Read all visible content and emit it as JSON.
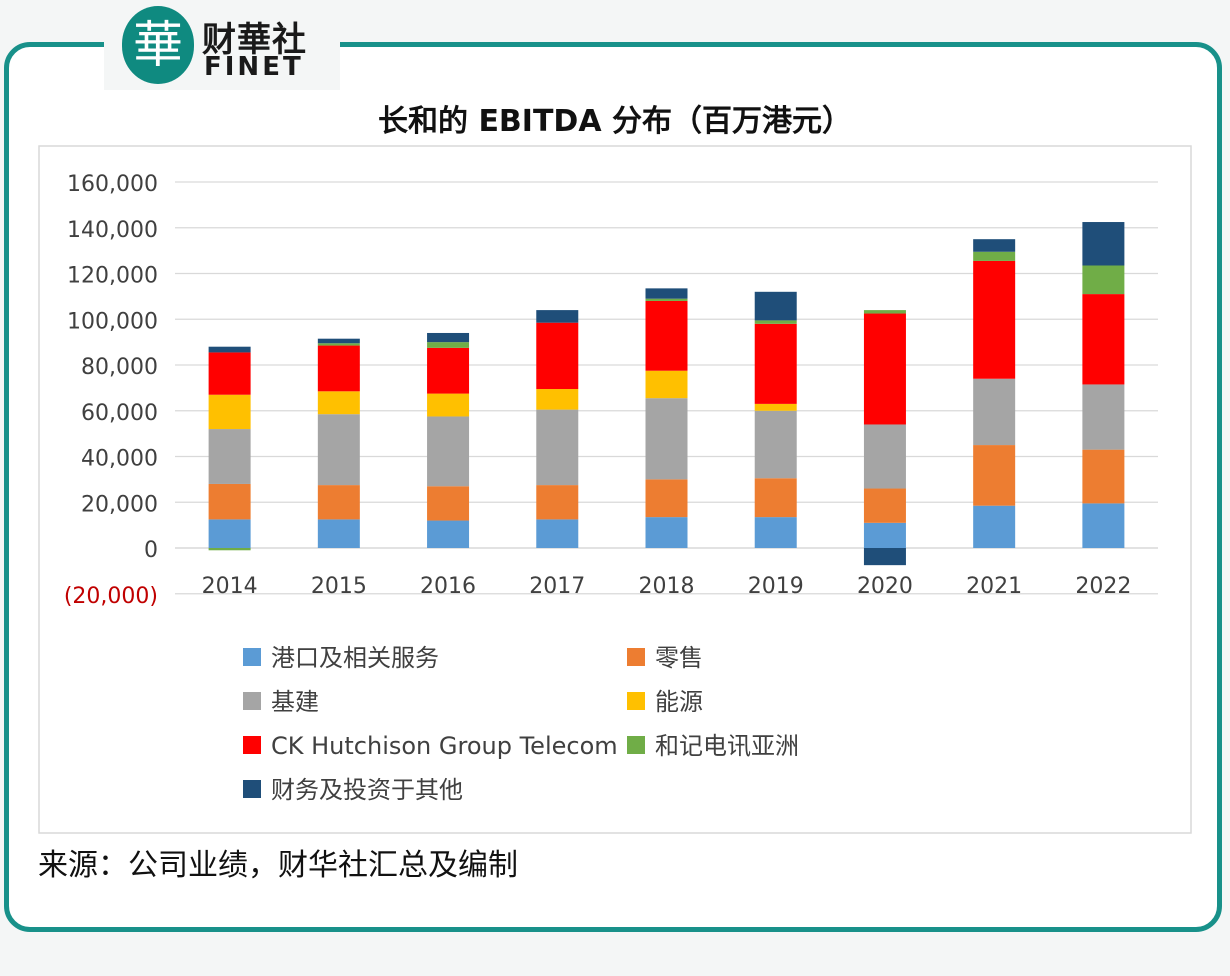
{
  "brand": {
    "logo_char": "華",
    "name_cn": "财華社",
    "name_en": "FINET"
  },
  "source_note": "来源：公司业绩，财华社汇总及编制",
  "colors": {
    "frame": "#18918a",
    "negative_label": "#c00000"
  },
  "chart_data": {
    "type": "bar",
    "stacked": true,
    "title": "长和的 EBITDA 分布（百万港元）",
    "xlabel": "",
    "ylabel": "",
    "ylim": [
      -20000,
      160000
    ],
    "yticks": [
      -20000,
      0,
      20000,
      40000,
      60000,
      80000,
      100000,
      120000,
      140000,
      160000
    ],
    "ytick_labels": [
      "(20,000)",
      "0",
      "20,000",
      "40,000",
      "60,000",
      "80,000",
      "100,000",
      "120,000",
      "140,000",
      "160,000"
    ],
    "grid": true,
    "legend_position": "bottom",
    "categories": [
      "2014",
      "2015",
      "2016",
      "2017",
      "2018",
      "2019",
      "2020",
      "2021",
      "2022"
    ],
    "series": [
      {
        "name": "港口及相关服务",
        "color": "#5b9bd5",
        "values": [
          12500,
          12500,
          12000,
          12500,
          13500,
          13500,
          11000,
          18500,
          19500
        ]
      },
      {
        "name": "零售",
        "color": "#ed7d31",
        "values": [
          15500,
          15000,
          15000,
          15000,
          16500,
          17000,
          15000,
          26500,
          23500
        ]
      },
      {
        "name": "基建",
        "color": "#a5a5a5",
        "values": [
          24000,
          31000,
          30500,
          33000,
          35500,
          29500,
          28000,
          29000,
          28500
        ]
      },
      {
        "name": "能源",
        "color": "#ffc000",
        "values": [
          15000,
          10000,
          10000,
          9000,
          12000,
          3000,
          0,
          0,
          0
        ]
      },
      {
        "name": "CK Hutchison Group Telecom",
        "color": "#ff0000",
        "values": [
          18500,
          20000,
          20000,
          29000,
          30500,
          35000,
          48500,
          51500,
          39500
        ]
      },
      {
        "name": "和记电讯亚洲",
        "color": "#70ad47",
        "values": [
          -1000,
          1000,
          2500,
          0,
          1000,
          1500,
          1500,
          4000,
          12500
        ]
      },
      {
        "name": "财务及投资于其他",
        "color": "#1f4e79",
        "values": [
          2500,
          2000,
          4000,
          5500,
          4500,
          12500,
          -7500,
          5500,
          19000
        ]
      }
    ]
  }
}
